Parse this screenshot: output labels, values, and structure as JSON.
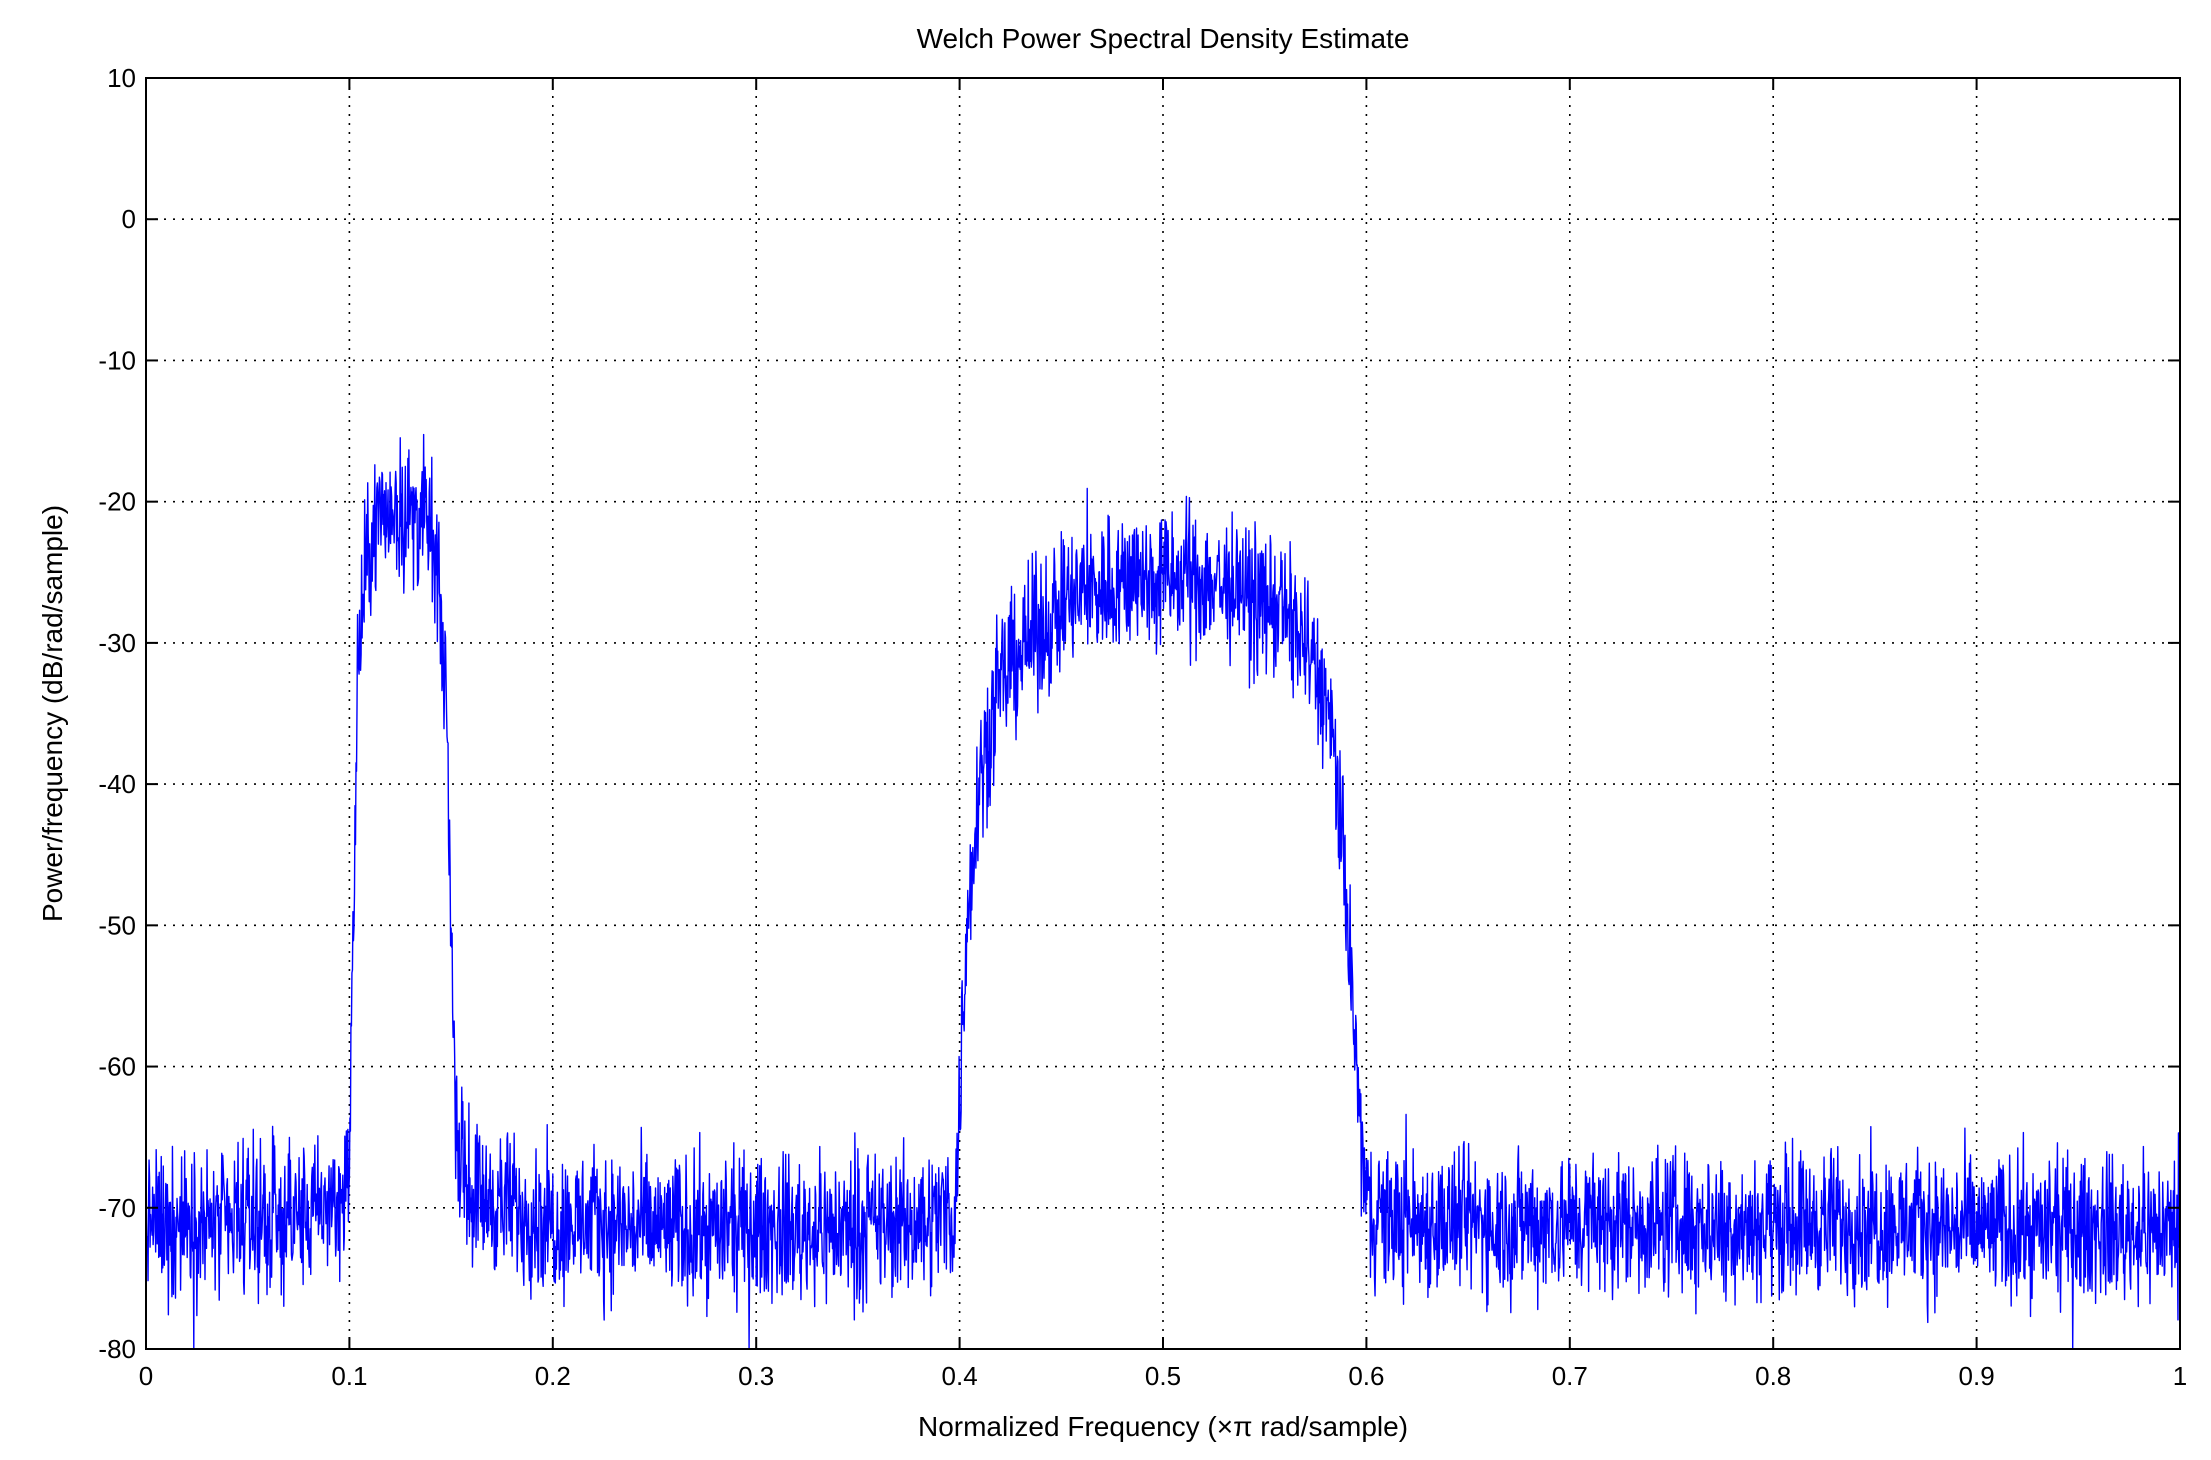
{
  "chart_data": {
    "type": "line",
    "title": "Welch Power Spectral Density Estimate",
    "xlabel": "Normalized Frequency  (×π rad/sample)",
    "ylabel": "Power/frequency (dB/rad/sample)",
    "xlim": [
      0,
      1
    ],
    "ylim": [
      -80,
      10
    ],
    "xticks": [
      0,
      0.1,
      0.2,
      0.3,
      0.4,
      0.5,
      0.6,
      0.7,
      0.8,
      0.9,
      1
    ],
    "xtick_labels": [
      "0",
      "0.1",
      "0.2",
      "0.3",
      "0.4",
      "0.5",
      "0.6",
      "0.7",
      "0.8",
      "0.9",
      "1"
    ],
    "yticks": [
      10,
      0,
      -10,
      -20,
      -30,
      -40,
      -50,
      -60,
      -70,
      -80
    ],
    "ytick_labels": [
      "10",
      "0",
      "-10",
      "-20",
      "-30",
      "-40",
      "-50",
      "-60",
      "-70",
      "-80"
    ],
    "grid": true,
    "color": "#0000ff",
    "series": [
      {
        "x": [
          0,
          0.02,
          0.04,
          0.06,
          0.08,
          0.095,
          0.1,
          0.102,
          0.104,
          0.108,
          0.112,
          0.116,
          0.12,
          0.125,
          0.13,
          0.135,
          0.14,
          0.144,
          0.148,
          0.15,
          0.152,
          0.155,
          0.16,
          0.18,
          0.2,
          0.22,
          0.25,
          0.28,
          0.3,
          0.32,
          0.35,
          0.38,
          0.398,
          0.402,
          0.405,
          0.41,
          0.415,
          0.42,
          0.43,
          0.44,
          0.45,
          0.46,
          0.47,
          0.48,
          0.49,
          0.5,
          0.51,
          0.52,
          0.53,
          0.54,
          0.55,
          0.56,
          0.57,
          0.575,
          0.58,
          0.585,
          0.59,
          0.595,
          0.6,
          0.605,
          0.62,
          0.65,
          0.7,
          0.75,
          0.8,
          0.85,
          0.9,
          0.95,
          1
        ],
        "y": [
          -71,
          -71,
          -71.5,
          -71,
          -70.5,
          -69.5,
          -67,
          -50,
          -32,
          -25,
          -22,
          -21,
          -20.5,
          -20.5,
          -21,
          -21,
          -22,
          -27,
          -35,
          -50,
          -62,
          -67,
          -69,
          -70,
          -71,
          -71,
          -71.5,
          -71.5,
          -71.5,
          -71.5,
          -71.5,
          -71,
          -70,
          -55,
          -47,
          -39,
          -36,
          -33,
          -30.5,
          -29,
          -27.5,
          -26.5,
          -26,
          -25.5,
          -25.5,
          -25.5,
          -25.5,
          -25.5,
          -26,
          -26.5,
          -27,
          -28,
          -30,
          -32,
          -34,
          -39,
          -48,
          -60,
          -70,
          -70.5,
          -71,
          -71,
          -71,
          -71,
          -71,
          -71,
          -71.5,
          -71.5,
          -71.5
        ],
        "noise_db": 2.5
      }
    ]
  }
}
